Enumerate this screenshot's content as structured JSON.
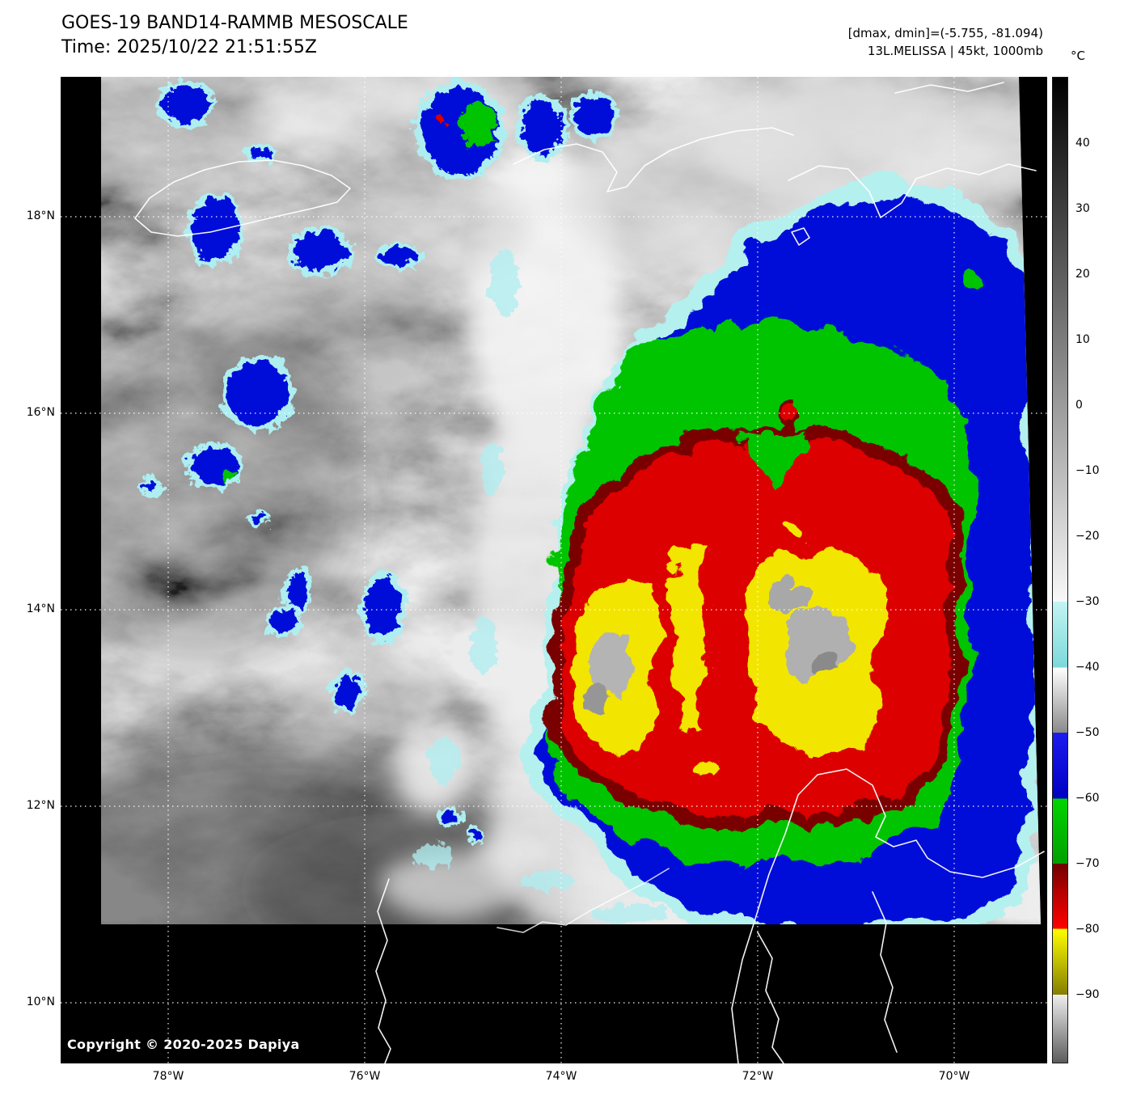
{
  "header": {
    "title": "GOES-19 BAND14-RAMMB MESOSCALE",
    "time_line": "Time: 2025/10/22 21:51:55Z",
    "dmax_dmin": "[dmax, dmin]=(-5.755, -81.094)",
    "storm_line": "13L.MELISSA | 45kt, 1000mb"
  },
  "colorbar": {
    "unit_label": "°C",
    "ticks": [
      "40",
      "30",
      "20",
      "10",
      "0",
      "−10",
      "−20",
      "−30",
      "−40",
      "−50",
      "−60",
      "−70",
      "−80",
      "−90"
    ],
    "palette": {
      "grayscale_top": "#000000",
      "grayscale_bottom": "#ffffff",
      "cyan_band": "#9ae6e6",
      "blue_band": "#0000dc",
      "green_band": "#00c800",
      "dark_red_band": "#6e0000",
      "red_band": "#ee0000",
      "yellow_band": "#f5ec00",
      "overshoot_gray": "#b4b4b4"
    }
  },
  "axes": {
    "lat_labels": [
      "18°N",
      "16°N",
      "14°N",
      "12°N",
      "10°N"
    ],
    "lon_labels": [
      "78°W",
      "76°W",
      "74°W",
      "72°W",
      "70°W"
    ]
  },
  "footer": {
    "copyright": "Copyright © 2020-2025 Dapiya"
  }
}
